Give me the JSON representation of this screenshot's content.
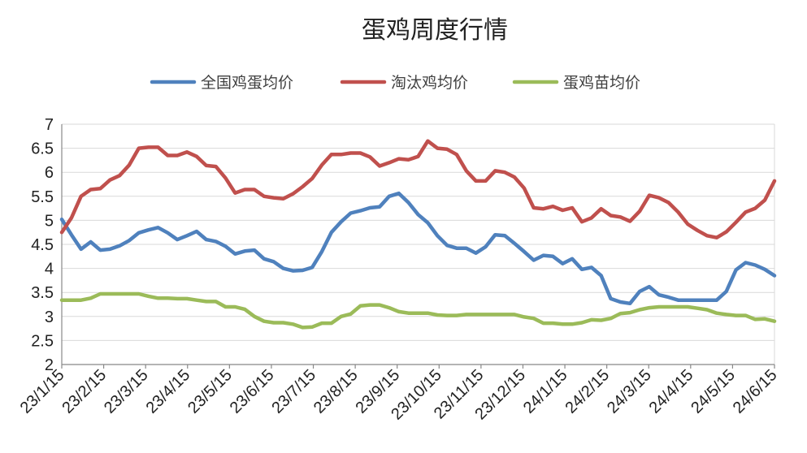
{
  "chart_data": {
    "type": "line",
    "title": "蛋鸡周度行情",
    "xlabel": "",
    "ylabel": "",
    "ylim": [
      2,
      7
    ],
    "yticks": [
      "2",
      "2.5",
      "3",
      "3.5",
      "4",
      "4.5",
      "5",
      "5.5",
      "6",
      "6.5",
      "7"
    ],
    "grid": true,
    "legend_position": "top",
    "x_tick_labels": [
      "23/1/15",
      "23/2/15",
      "23/3/15",
      "23/4/15",
      "23/5/15",
      "23/6/15",
      "23/7/15",
      "23/8/15",
      "23/9/15",
      "23/10/15",
      "23/11/15",
      "23/12/15",
      "24/1/15",
      "24/2/15",
      "24/3/15",
      "24/4/15",
      "24/5/15",
      "24/6/15"
    ],
    "points_per_month": 4,
    "series": [
      {
        "name": "全国鸡蛋均价",
        "color": "#4f81bd",
        "values": [
          5.02,
          4.7,
          4.4,
          4.55,
          4.38,
          4.4,
          4.47,
          4.58,
          4.74,
          4.8,
          4.85,
          4.74,
          4.6,
          4.68,
          4.77,
          4.6,
          4.56,
          4.46,
          4.3,
          4.36,
          4.38,
          4.2,
          4.14,
          4.0,
          3.95,
          3.96,
          4.02,
          4.35,
          4.75,
          4.97,
          5.15,
          5.2,
          5.26,
          5.28,
          5.5,
          5.56,
          5.37,
          5.12,
          4.95,
          4.68,
          4.48,
          4.42,
          4.42,
          4.32,
          4.45,
          4.7,
          4.68,
          4.52,
          4.35,
          4.17,
          4.27,
          4.25,
          4.1,
          4.2,
          3.98,
          4.02,
          3.85,
          3.37,
          3.3,
          3.27,
          3.52,
          3.62,
          3.45,
          3.4,
          3.34,
          3.34,
          3.34,
          3.34,
          3.34,
          3.52,
          3.97,
          4.12,
          4.07,
          3.98,
          3.85
        ]
      },
      {
        "name": "淘汰鸡均价",
        "color": "#c0504d",
        "values": [
          4.75,
          5.05,
          5.5,
          5.64,
          5.66,
          5.84,
          5.93,
          6.15,
          6.5,
          6.52,
          6.52,
          6.35,
          6.35,
          6.42,
          6.33,
          6.14,
          6.12,
          5.88,
          5.57,
          5.64,
          5.64,
          5.5,
          5.47,
          5.45,
          5.55,
          5.7,
          5.87,
          6.15,
          6.37,
          6.37,
          6.4,
          6.4,
          6.32,
          6.13,
          6.2,
          6.28,
          6.26,
          6.33,
          6.65,
          6.5,
          6.48,
          6.37,
          6.03,
          5.82,
          5.82,
          6.03,
          6.0,
          5.9,
          5.67,
          5.26,
          5.24,
          5.29,
          5.21,
          5.26,
          4.97,
          5.05,
          5.24,
          5.1,
          5.07,
          4.98,
          5.19,
          5.52,
          5.47,
          5.37,
          5.17,
          4.92,
          4.79,
          4.68,
          4.64,
          4.76,
          4.96,
          5.17,
          5.25,
          5.42,
          5.82
        ]
      },
      {
        "name": "蛋鸡苗均价",
        "color": "#9bbb59",
        "values": [
          3.34,
          3.34,
          3.34,
          3.38,
          3.47,
          3.47,
          3.47,
          3.47,
          3.47,
          3.42,
          3.38,
          3.38,
          3.37,
          3.37,
          3.34,
          3.31,
          3.31,
          3.2,
          3.2,
          3.15,
          3.0,
          2.9,
          2.87,
          2.87,
          2.84,
          2.77,
          2.78,
          2.86,
          2.86,
          3.0,
          3.05,
          3.22,
          3.24,
          3.24,
          3.18,
          3.1,
          3.07,
          3.07,
          3.07,
          3.03,
          3.02,
          3.02,
          3.04,
          3.04,
          3.04,
          3.04,
          3.04,
          3.04,
          2.99,
          2.96,
          2.86,
          2.86,
          2.84,
          2.84,
          2.87,
          2.93,
          2.92,
          2.96,
          3.06,
          3.08,
          3.14,
          3.18,
          3.2,
          3.2,
          3.2,
          3.2,
          3.17,
          3.14,
          3.07,
          3.04,
          3.02,
          3.02,
          2.94,
          2.95,
          2.9
        ]
      }
    ]
  }
}
